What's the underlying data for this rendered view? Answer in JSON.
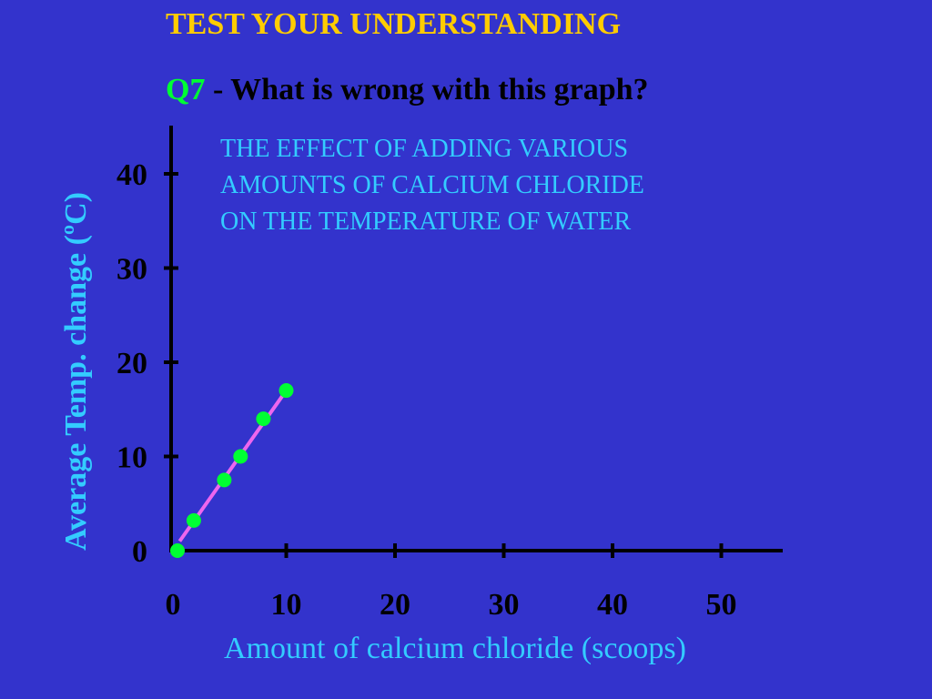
{
  "slide": {
    "heading": "TEST YOUR UNDERSTANDING",
    "question_number": "Q7",
    "question_text": " - What is wrong with this graph?"
  },
  "colors": {
    "background": "#3333CC",
    "heading": "#FFCC00",
    "question_number": "#00FF33",
    "title_text": "#33CCFF",
    "axis": "#000000",
    "point": "#00FF33",
    "line": "#EE66EE"
  },
  "chart_data": {
    "type": "scatter",
    "title_lines": [
      "THE EFFECT OF ADDING VARIOUS",
      "AMOUNTS OF CALCIUM CHLORIDE",
      "ON THE TEMPERATURE OF WATER"
    ],
    "xlabel": "Amount of calcium chloride (scoops)",
    "ylabel": "Average Temp. change (ºC)",
    "x_ticks": [
      0,
      10,
      20,
      30,
      40,
      50
    ],
    "y_ticks": [
      0,
      10,
      20,
      30,
      40
    ],
    "points": [
      {
        "x": 0,
        "y": 0
      },
      {
        "x": 1.5,
        "y": 3.2
      },
      {
        "x": 4.3,
        "y": 7.5
      },
      {
        "x": 5.8,
        "y": 10.0
      },
      {
        "x": 7.9,
        "y": 14.0
      },
      {
        "x": 10.0,
        "y": 17.0
      }
    ],
    "best_fit_line": {
      "x1": 0.2,
      "y1": 1.0,
      "x2": 10.0,
      "y2": 17.0
    },
    "grid": false,
    "legend": "none"
  }
}
